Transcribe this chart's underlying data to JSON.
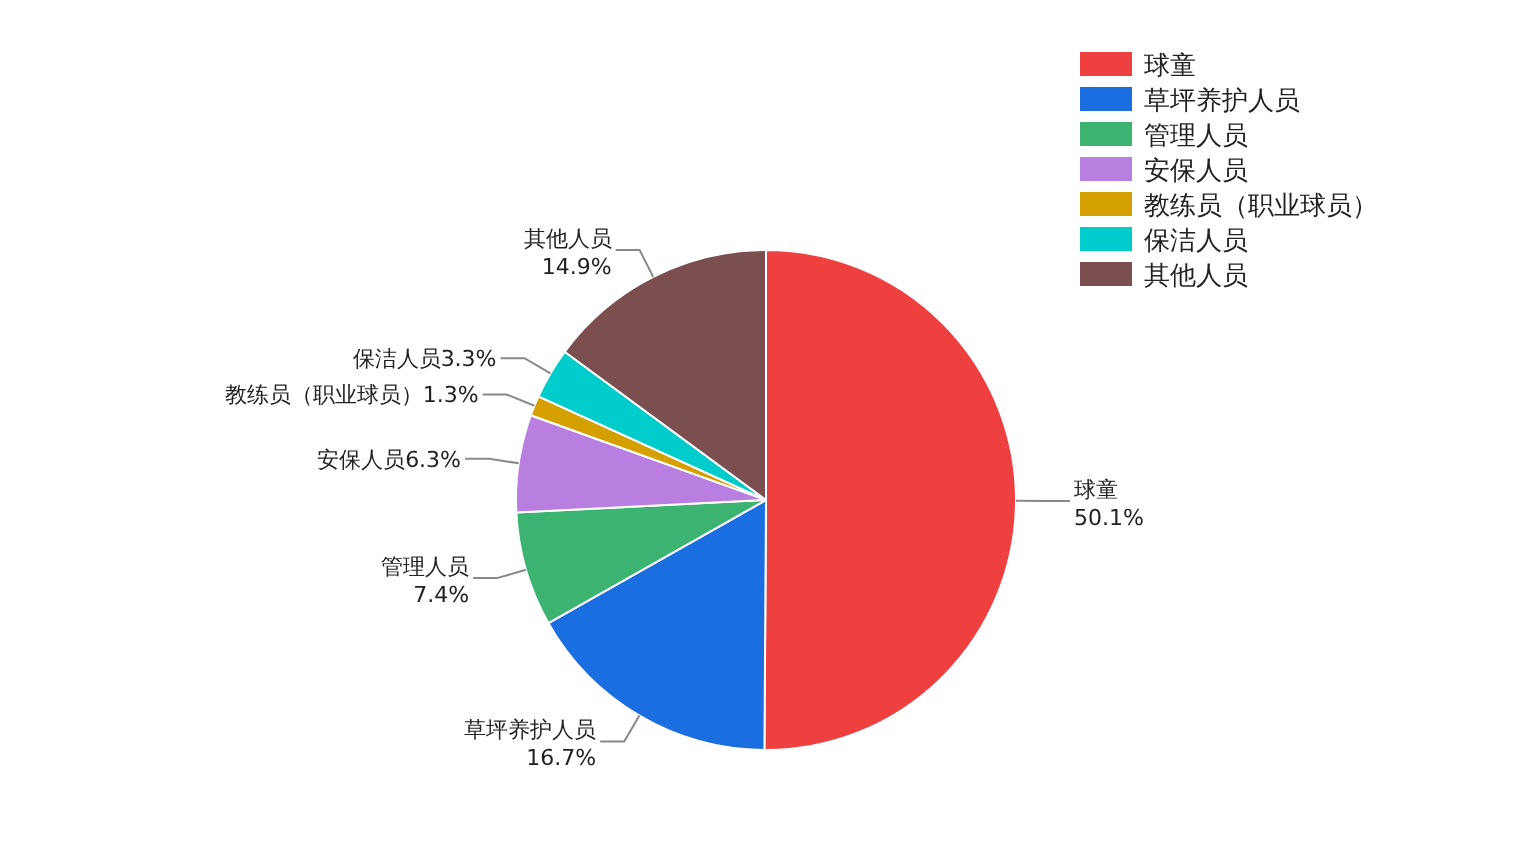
{
  "chart_data": {
    "type": "pie",
    "categories": [
      "球童",
      "草坪养护人员",
      "管理人员",
      "安保人员",
      "教练员（职业球员）",
      "保洁人员",
      "其他人员"
    ],
    "values": [
      50.1,
      16.7,
      7.4,
      6.3,
      1.3,
      3.3,
      14.9
    ],
    "value_labels": [
      "50.1%",
      "16.7%",
      "7.4%",
      "6.3%",
      "1.3%",
      "3.3%",
      "14.9%"
    ],
    "colors": [
      "#ef4040",
      "#1a6ee0",
      "#3cb371",
      "#b87ee0",
      "#d4a000",
      "#00cccc",
      "#7b4f4f"
    ],
    "legend": "top right"
  }
}
